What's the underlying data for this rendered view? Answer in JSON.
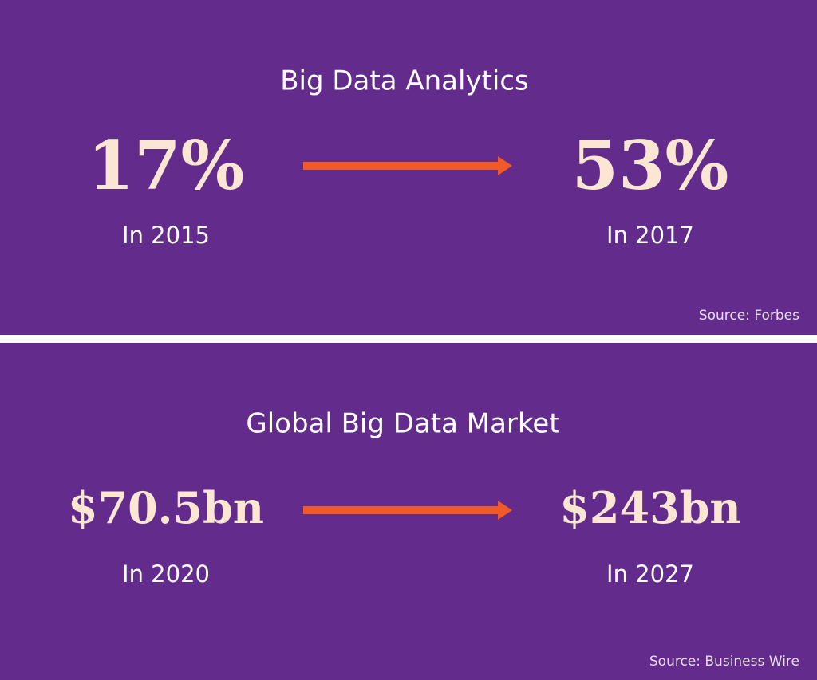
{
  "panels": [
    {
      "title": "Big Data Analytics",
      "from": {
        "value": "17%",
        "label": "In 2015"
      },
      "to": {
        "value": "53%",
        "label": "In 2017"
      },
      "source": "Source: Forbes"
    },
    {
      "title": "Global Big Data Market",
      "from": {
        "value": "$70.5bn",
        "label": "In 2020"
      },
      "to": {
        "value": "$243bn",
        "label": "In 2027"
      },
      "source": "Source: Business Wire"
    }
  ]
}
